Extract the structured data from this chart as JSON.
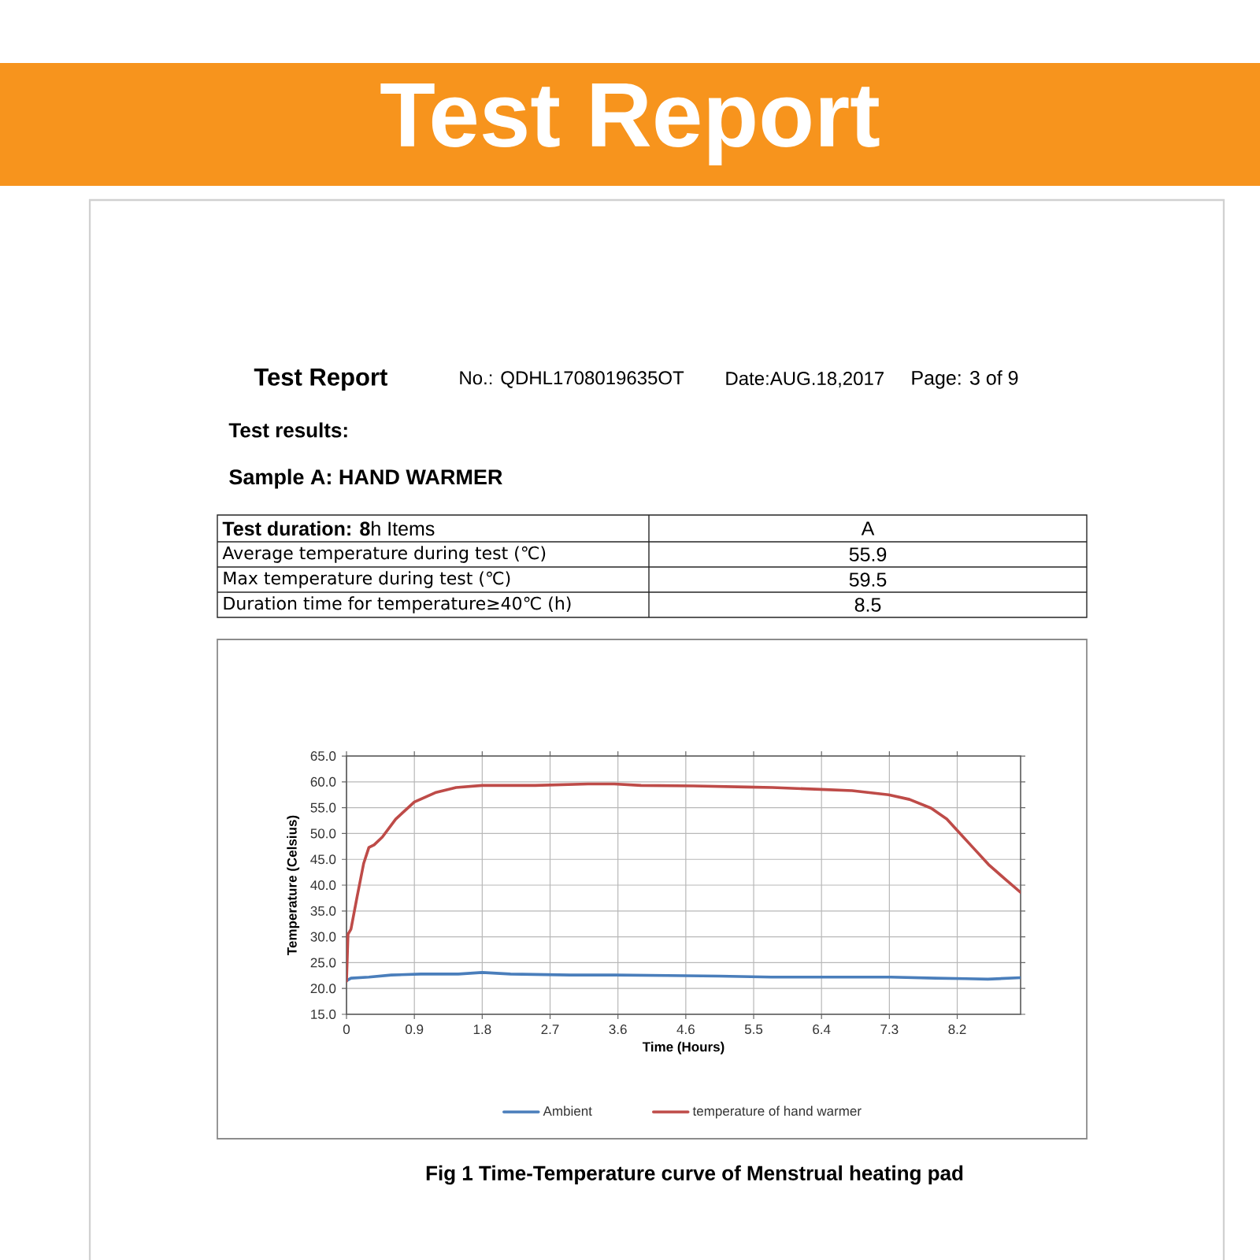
{
  "chart_data": {
    "type": "line",
    "title": "Test Report",
    "xlabel": "Time (Hours)",
    "ylabel": "Temperature (Celsius)",
    "xlim": [
      0,
      9.04
    ],
    "xticks": [
      0,
      {
        "value": 0.91,
        "label": "0.9"
      },
      {
        "value": 1.82,
        "label": "1.8"
      },
      {
        "value": 2.73,
        "label": "2.7"
      },
      {
        "value": 3.64,
        "label": "3.6"
      },
      {
        "value": 4.55,
        "label": "4.6"
      },
      {
        "value": 5.46,
        "label": "5.5"
      },
      {
        "value": 6.37,
        "label": "6.4"
      },
      {
        "value": 7.28,
        "label": "7.3"
      },
      {
        "value": 8.19,
        "label": "8.2"
      }
    ],
    "ylim": [
      15,
      65
    ],
    "yticks": [
      {
        "value": 15,
        "label": "15.0"
      },
      {
        "value": 20,
        "label": "20.0"
      },
      {
        "value": 25,
        "label": "25.0"
      },
      {
        "value": 30,
        "label": "30.0"
      },
      {
        "value": 35,
        "label": "35.0"
      },
      {
        "value": 40,
        "label": "40.0"
      },
      {
        "value": 45,
        "label": "45.0"
      },
      {
        "value": 50,
        "label": "50.0"
      },
      {
        "value": 55,
        "label": "55.0"
      },
      {
        "value": 60,
        "label": "60.0"
      },
      {
        "value": 65,
        "label": "65.0"
      }
    ],
    "grid": true,
    "legend": "bottom",
    "series": [
      {
        "name": "Ambient",
        "color": "#4a7ebb",
        "x": [
          0,
          0.06,
          0.3,
          0.6,
          1.0,
          1.5,
          1.82,
          2.2,
          3.0,
          3.6,
          4.3,
          5.0,
          5.7,
          6.4,
          7.3,
          7.9,
          8.3,
          8.6,
          9.04
        ],
        "values": [
          21.5,
          22.0,
          22.2,
          22.6,
          22.8,
          22.8,
          23.1,
          22.8,
          22.6,
          22.6,
          22.5,
          22.4,
          22.2,
          22.2,
          22.2,
          22.0,
          21.9,
          21.8,
          22.1
        ]
      },
      {
        "name": "temperature of hand warmer",
        "color": "#be4b48",
        "x": [
          0,
          0.02,
          0.06,
          0.14,
          0.23,
          0.3,
          0.37,
          0.48,
          0.66,
          0.91,
          1.19,
          1.47,
          1.82,
          2.53,
          3.24,
          3.59,
          3.95,
          4.65,
          5.36,
          5.71,
          6.42,
          6.78,
          7.27,
          7.55,
          7.84,
          8.05,
          8.19,
          8.4,
          8.61,
          8.83,
          9.04
        ],
        "values": [
          21.4,
          30.5,
          31.5,
          37.6,
          44.2,
          47.3,
          47.8,
          49.3,
          52.8,
          56.1,
          57.9,
          58.9,
          59.3,
          59.3,
          59.6,
          59.6,
          59.3,
          59.2,
          59.0,
          58.9,
          58.5,
          58.3,
          57.5,
          56.6,
          54.9,
          52.8,
          50.6,
          47.3,
          44.0,
          41.2,
          38.6
        ]
      }
    ],
    "annotations": [
      "Test Report",
      "No.: QDHL1708019635OT",
      "Date:AUG.18,2017",
      "Page: 3 of 9",
      "Test results:",
      "Sample A: HAND WARMER",
      "**Test duration: 8**h Items",
      "A",
      "Average temperature during test (℃)",
      "55.9",
      "Max temperature during test (℃)",
      "59.5",
      "Duration time for temperature≥40℃ (h)",
      "8.5",
      "Fig 1 Time-Temperature curve of Menstrual heating pad"
    ]
  }
}
